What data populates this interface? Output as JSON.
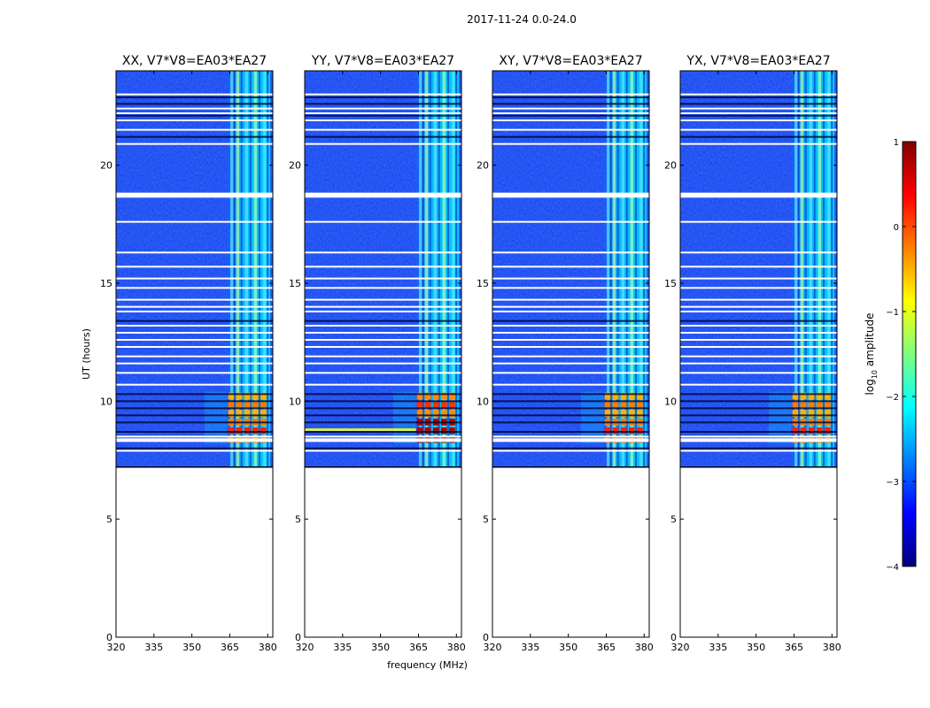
{
  "figure": {
    "suptitle": "2017-11-24 0.0-24.0"
  },
  "chart_data": [
    {
      "type": "heatmap",
      "title": "XX, V7*V8=EA03*EA27",
      "xlabel": "",
      "ylabel": "UT (hours)",
      "xlim": [
        320,
        382
      ],
      "ylim": [
        0,
        24
      ],
      "xticks": [
        320,
        335,
        350,
        365,
        380
      ],
      "yticks": [
        0,
        5,
        10,
        15,
        20
      ],
      "data_start_ut": 7.2,
      "bright_band_mhz": [
        364,
        380
      ],
      "rfi_window_ut": [
        8.2,
        10.4
      ],
      "strong_rfi": false
    },
    {
      "type": "heatmap",
      "title": "YY, V7*V8=EA03*EA27",
      "xlabel": "frequency (MHz)",
      "ylabel": "",
      "xlim": [
        320,
        382
      ],
      "ylim": [
        0,
        24
      ],
      "xticks": [
        320,
        335,
        350,
        365,
        380
      ],
      "yticks": [
        0,
        5,
        10,
        15,
        20
      ],
      "data_start_ut": 7.2,
      "bright_band_mhz": [
        364,
        380
      ],
      "rfi_window_ut": [
        8.2,
        10.4
      ],
      "strong_rfi": true
    },
    {
      "type": "heatmap",
      "title": "XY, V7*V8=EA03*EA27",
      "xlabel": "",
      "ylabel": "",
      "xlim": [
        320,
        382
      ],
      "ylim": [
        0,
        24
      ],
      "xticks": [
        320,
        335,
        350,
        365,
        380
      ],
      "yticks": [
        0,
        5,
        10,
        15,
        20
      ],
      "data_start_ut": 7.2,
      "bright_band_mhz": [
        364,
        380
      ],
      "rfi_window_ut": [
        8.2,
        10.4
      ],
      "strong_rfi": false
    },
    {
      "type": "heatmap",
      "title": "YX, V7*V8=EA03*EA27",
      "xlabel": "",
      "ylabel": "",
      "xlim": [
        320,
        382
      ],
      "ylim": [
        0,
        24
      ],
      "xticks": [
        320,
        335,
        350,
        365,
        380
      ],
      "yticks": [
        0,
        5,
        10,
        15,
        20
      ],
      "data_start_ut": 7.2,
      "bright_band_mhz": [
        364,
        380
      ],
      "rfi_window_ut": [
        8.2,
        10.4
      ],
      "strong_rfi": false
    }
  ],
  "colorbar": {
    "label_prefix": "log",
    "label_sub": "10",
    "label_suffix": " amplitude",
    "ticks": [
      1,
      0,
      -1,
      -2,
      -3,
      -4
    ],
    "range": [
      -4,
      1
    ],
    "stops": [
      "#00007f",
      "#0000ff",
      "#007fff",
      "#00ffff",
      "#7fff7f",
      "#ffff00",
      "#ff7f00",
      "#ff0000",
      "#7f0000"
    ]
  },
  "blank_rows_ut": [
    7.9,
    8.35,
    8.5,
    10.7,
    11.2,
    11.6,
    11.9,
    12.3,
    12.6,
    12.9,
    13.2,
    13.8,
    14.0,
    14.3,
    14.8,
    15.2,
    15.7,
    16.3,
    17.6,
    18.7,
    18.8,
    20.9,
    21.5,
    21.9,
    22.2,
    22.4,
    23.0
  ],
  "dark_rows_ut": [
    8.0,
    8.7,
    9.1,
    9.4,
    9.7,
    10.0,
    10.3,
    13.4,
    21.2,
    22.1,
    22.6
  ]
}
